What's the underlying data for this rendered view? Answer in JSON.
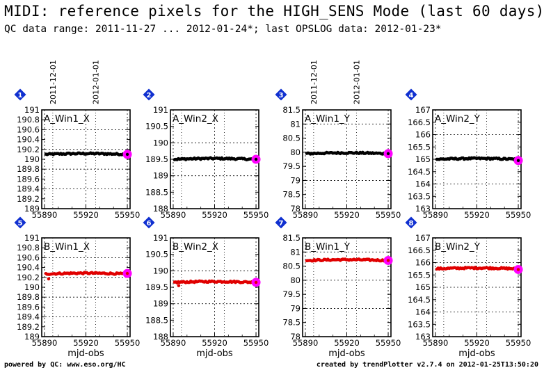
{
  "header": {
    "title": "MIDI: reference pixels for the HIGH_SENS Mode (last 60 days)",
    "subtitle": "QC data range: 2011-11-27 ... 2012-01-24*; last OPSLOG data: 2012-01-23*"
  },
  "footer": {
    "left": "powered by QC: www.eso.org/HC",
    "right": "created by trendPlotter v2.7.4 on 2012-01-25T13:50:20"
  },
  "colors": {
    "row1": "#000000",
    "row2": "#e00000",
    "last_point": "#ff00ff",
    "badge": "#1030d0"
  },
  "date_markers": [
    {
      "label": "2011-12-01",
      "mjd": 55896
    },
    {
      "label": "2012-01-01",
      "mjd": 55927
    }
  ],
  "chart_data": [
    {
      "type": "scatter",
      "badge": "1",
      "label": "A_Win1_X",
      "xlabel": "",
      "ylim": [
        189,
        191
      ],
      "yticks": [
        "189",
        "189.2",
        "189.4",
        "189.6",
        "189.8",
        "190",
        "190.2",
        "190.4",
        "190.6",
        "190.8",
        "191"
      ],
      "xlim": [
        55888,
        55952
      ],
      "xticks": [
        "55890",
        "55920",
        "55950"
      ],
      "color": "row1",
      "level": 190.1,
      "last": 190.1
    },
    {
      "type": "scatter",
      "badge": "2",
      "label": "A_Win2_X",
      "xlabel": "",
      "ylim": [
        188,
        191
      ],
      "yticks": [
        "188",
        "188.5",
        "189",
        "189.5",
        "190",
        "190.5",
        "191"
      ],
      "xlim": [
        55888,
        55952
      ],
      "xticks": [
        "55890",
        "55920",
        "55950"
      ],
      "color": "row1",
      "level": 189.5,
      "last": 189.5
    },
    {
      "type": "scatter",
      "badge": "3",
      "label": "A_Win1_Y",
      "xlabel": "",
      "ylim": [
        78,
        81.5
      ],
      "yticks": [
        "78",
        "78.5",
        "79",
        "79.5",
        "80",
        "80.5",
        "81",
        "81.5"
      ],
      "xlim": [
        55888,
        55952
      ],
      "xticks": [
        "55890",
        "55920",
        "55950"
      ],
      "color": "row1",
      "level": 79.95,
      "last": 79.95
    },
    {
      "type": "scatter",
      "badge": "4",
      "label": "A_Win2_Y",
      "xlabel": "",
      "ylim": [
        163,
        167
      ],
      "yticks": [
        "163",
        "163.5",
        "164",
        "164.5",
        "165",
        "165.5",
        "166",
        "166.5",
        "167"
      ],
      "xlim": [
        55888,
        55952
      ],
      "xticks": [
        "55890",
        "55920",
        "55950"
      ],
      "color": "row1",
      "level": 165.0,
      "last": 164.95
    },
    {
      "type": "scatter",
      "badge": "5",
      "label": "B_Win1_X",
      "xlabel": "mjd-obs",
      "ylim": [
        189,
        191
      ],
      "yticks": [
        "189",
        "189.2",
        "189.4",
        "189.6",
        "189.8",
        "190",
        "190.2",
        "190.4",
        "190.6",
        "190.8",
        "191"
      ],
      "xlim": [
        55888,
        55952
      ],
      "xticks": [
        "55890",
        "55920",
        "55950"
      ],
      "color": "row2",
      "level": 190.27,
      "last": 190.28
    },
    {
      "type": "scatter",
      "badge": "6",
      "label": "B_Win2_X",
      "xlabel": "mjd-obs",
      "ylim": [
        188,
        191
      ],
      "yticks": [
        "188",
        "188.5",
        "189",
        "189.5",
        "190",
        "190.5",
        "191"
      ],
      "xlim": [
        55888,
        55952
      ],
      "xticks": [
        "55890",
        "55920",
        "55950"
      ],
      "color": "row2",
      "level": 189.65,
      "last": 189.65
    },
    {
      "type": "scatter",
      "badge": "7",
      "label": "B_Win1_Y",
      "xlabel": "mjd-obs",
      "ylim": [
        78,
        81.5
      ],
      "yticks": [
        "78",
        "78.5",
        "79",
        "79.5",
        "80",
        "80.5",
        "81",
        "81.5"
      ],
      "xlim": [
        55888,
        55952
      ],
      "xticks": [
        "55890",
        "55920",
        "55950"
      ],
      "color": "row2",
      "level": 80.7,
      "last": 80.7
    },
    {
      "type": "scatter",
      "badge": "8",
      "label": "B_Win2_Y",
      "xlabel": "mjd-obs",
      "ylim": [
        163,
        167
      ],
      "yticks": [
        "163",
        "163.5",
        "164",
        "164.5",
        "165",
        "165.5",
        "166",
        "166.5",
        "167"
      ],
      "xlim": [
        55888,
        55952
      ],
      "xticks": [
        "55890",
        "55920",
        "55950"
      ],
      "color": "row2",
      "level": 165.75,
      "last": 165.72
    }
  ]
}
